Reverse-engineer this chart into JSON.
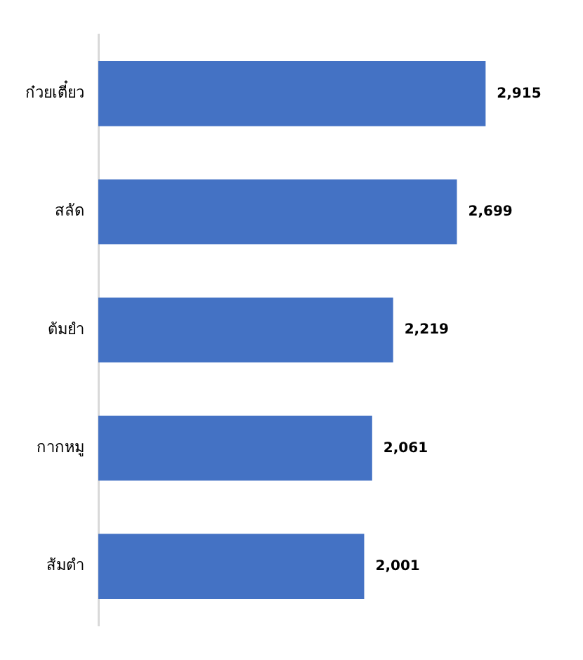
{
  "chart_data": {
    "type": "bar",
    "orientation": "horizontal",
    "categories": [
      "ก๋วยเตี๋ยว",
      "สลัด",
      "ต้มยำ",
      "กากหมู",
      "ส้มตำ"
    ],
    "values": [
      2915,
      2699,
      2219,
      2061,
      2001
    ],
    "value_labels": [
      "2,915",
      "2,699",
      "2,219",
      "2,061",
      "2,001"
    ],
    "color": "#4472c4",
    "grid": false
  }
}
